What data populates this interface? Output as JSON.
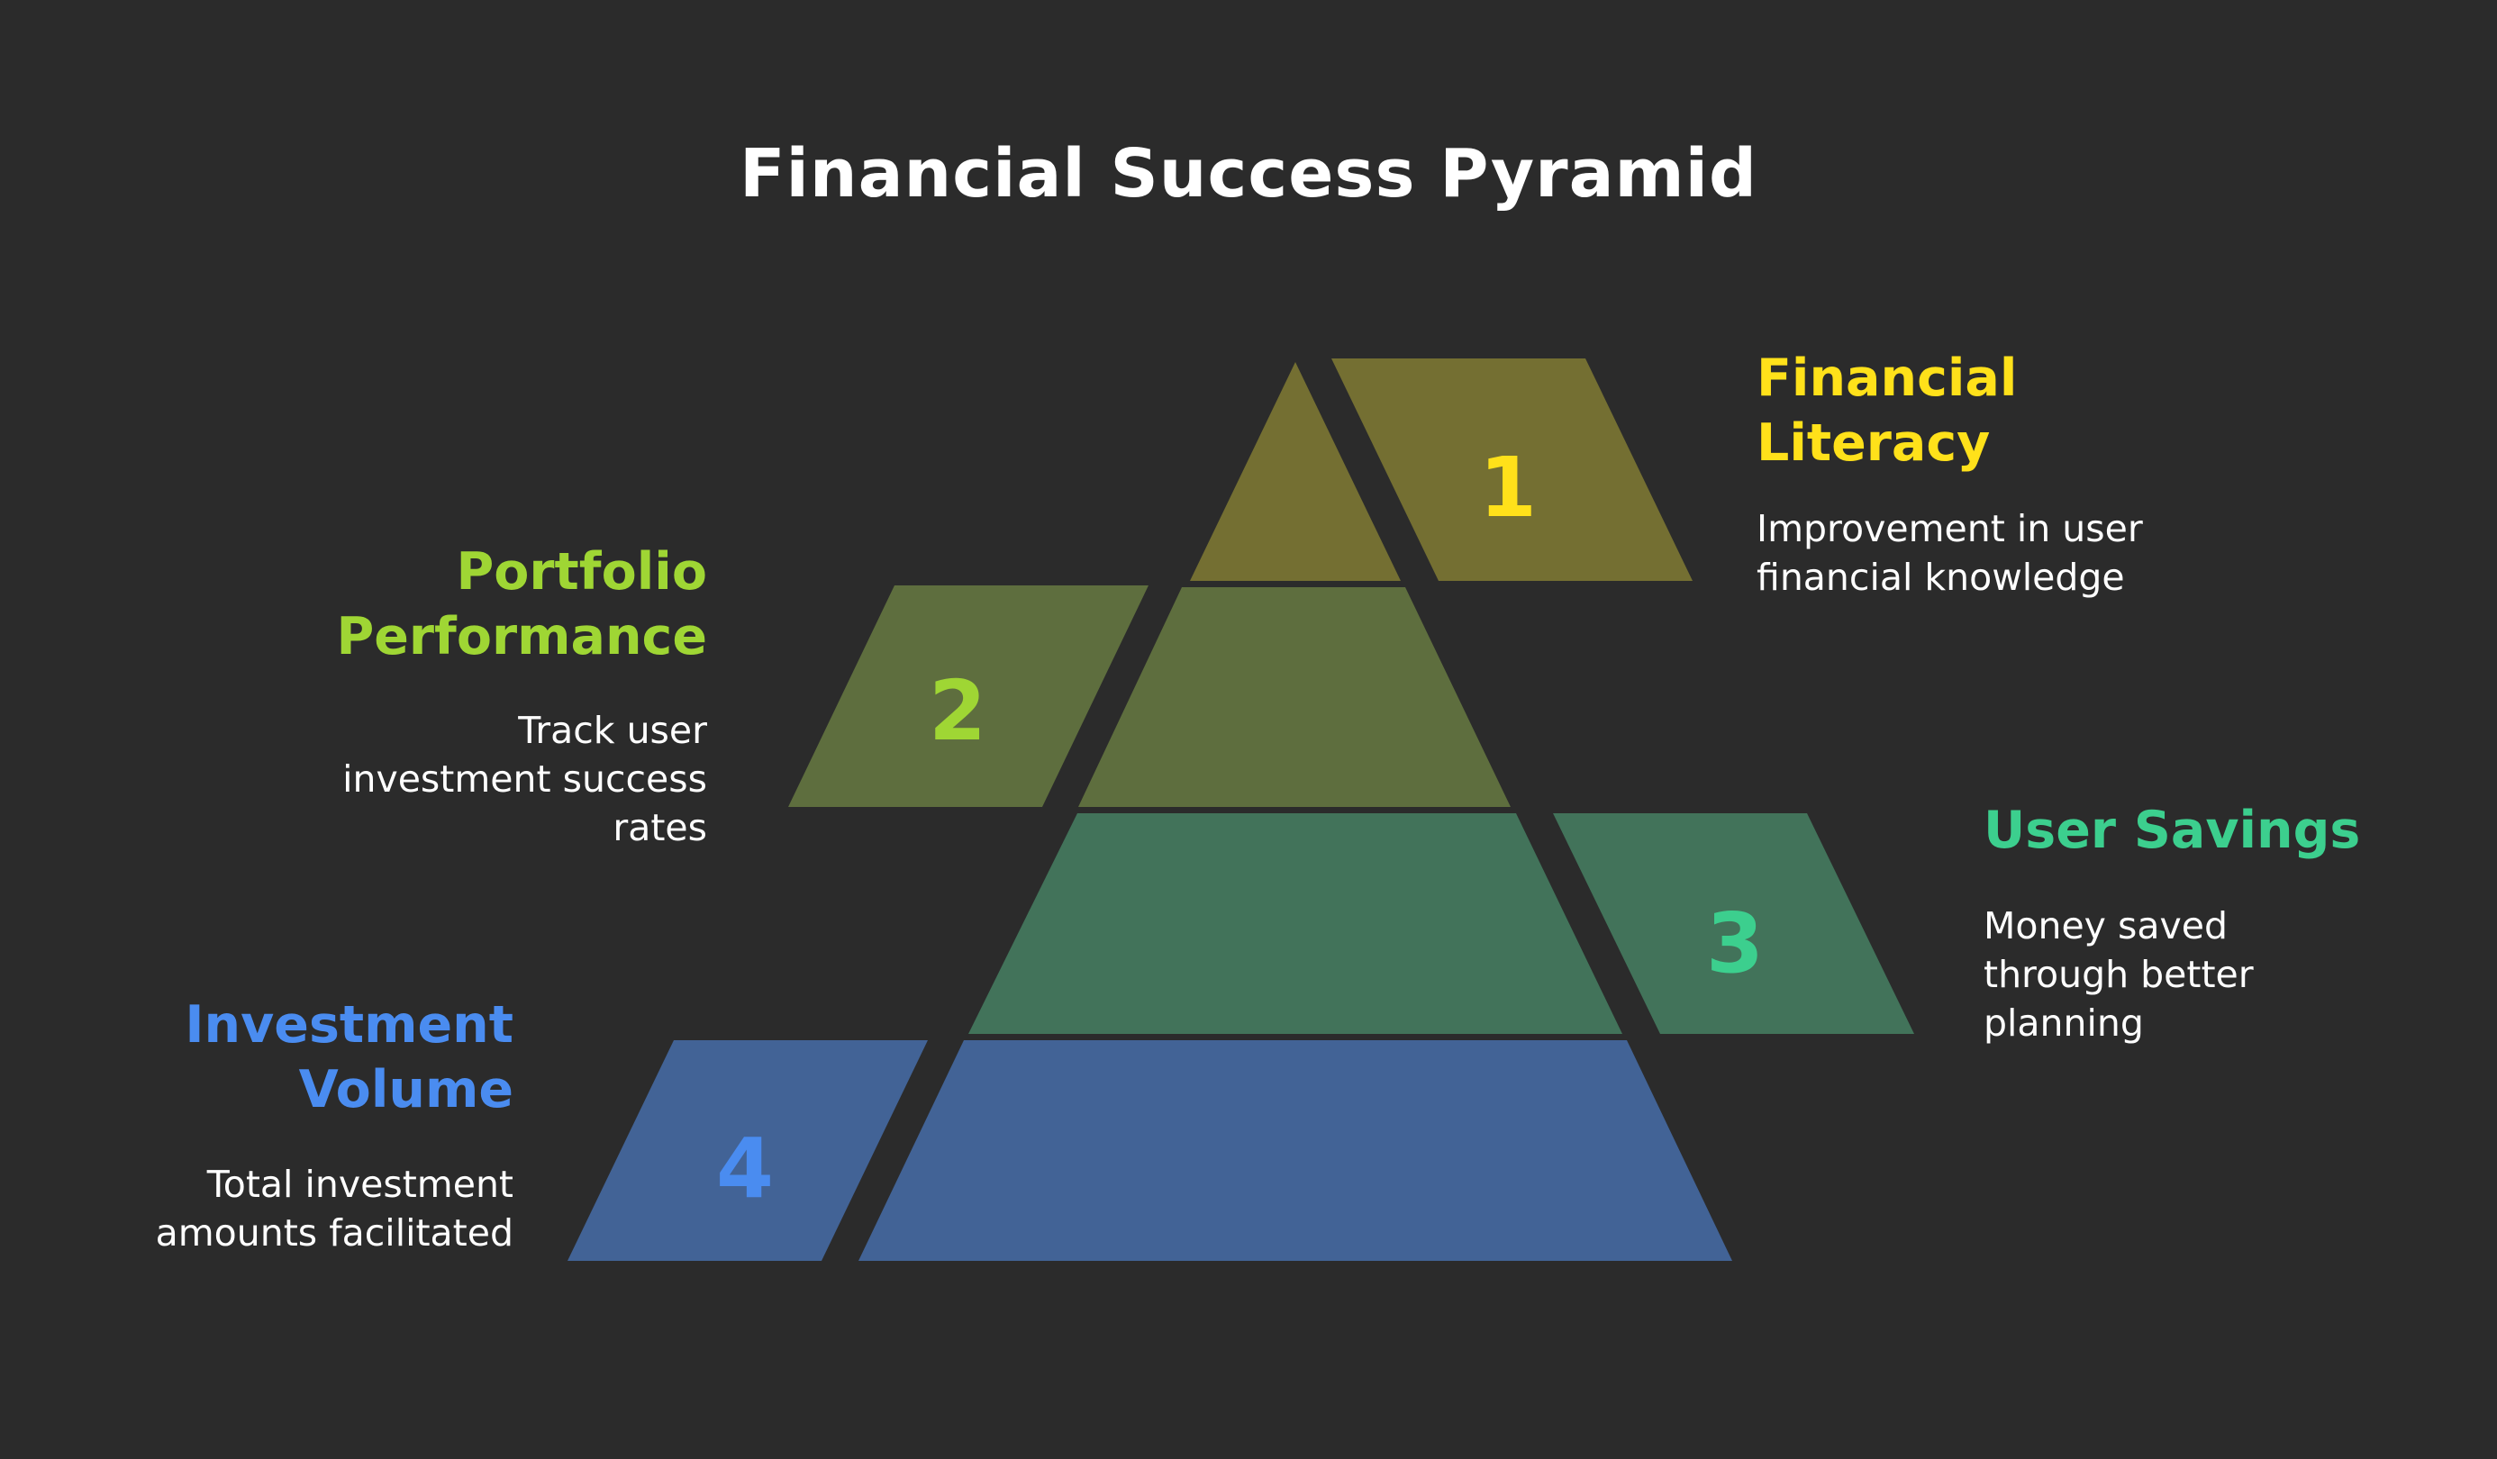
{
  "title": "Financial Success Pyramid",
  "levels": [
    {
      "number": "1",
      "label": "Financial Literacy",
      "description": "Improvement in user financial knowledge",
      "text_color": "#ffe11a",
      "fill_color": "#746f32"
    },
    {
      "number": "2",
      "label": "Portfolio Performance",
      "description": "Track user investment success rates",
      "text_color": "#9fd634",
      "fill_color": "#5e6e3e"
    },
    {
      "number": "3",
      "label": "User Savings",
      "description": "Money saved through better planning",
      "text_color": "#3ccf8e",
      "fill_color": "#42735a"
    },
    {
      "number": "4",
      "label": "Investment Volume",
      "description": "Total investment amounts facilitated",
      "text_color": "#4a8cf0",
      "fill_color": "#426396"
    }
  ]
}
